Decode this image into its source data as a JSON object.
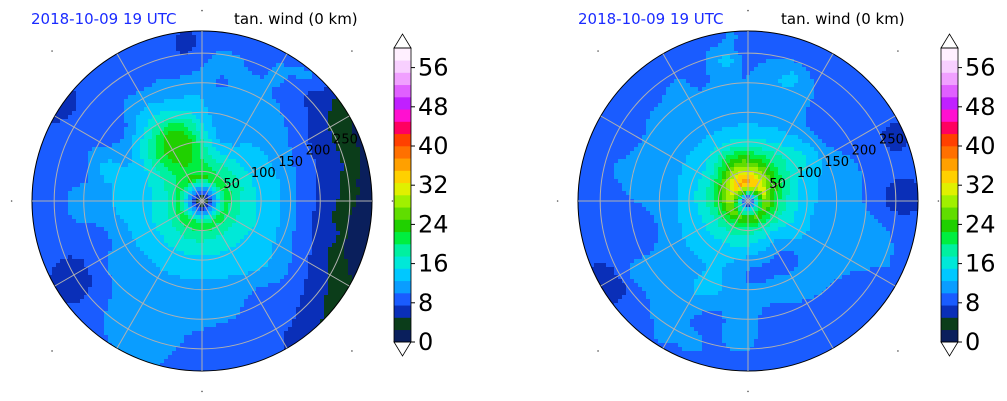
{
  "chart_data": [
    {
      "type": "heatmap",
      "date_label": "2018-10-09 19 UTC",
      "field_label": "tan. wind (0 km)",
      "radius_labels": [
        "50",
        "100",
        "150",
        "200",
        "250"
      ],
      "radius_ticks": [
        50,
        100,
        150,
        200,
        250
      ],
      "spokes_deg": [
        0,
        30,
        60,
        90,
        120,
        150,
        180,
        210,
        240,
        270,
        300,
        330
      ],
      "colorbar": {
        "ticks": [
          "0",
          "8",
          "16",
          "24",
          "32",
          "40",
          "48",
          "56"
        ],
        "tick_values": [
          0,
          8,
          16,
          24,
          32,
          40,
          48,
          56
        ],
        "range": [
          0,
          60
        ],
        "extend": "both"
      },
      "max_wind_approx": 33,
      "rmw_approx": 40
    },
    {
      "type": "heatmap",
      "date_label": "2018-10-09 19 UTC",
      "field_label": "tan. wind (0 km)",
      "radius_labels": [
        "50",
        "100",
        "150",
        "200",
        "250"
      ],
      "radius_ticks": [
        50,
        100,
        150,
        200,
        250
      ],
      "spokes_deg": [
        0,
        30,
        60,
        90,
        120,
        150,
        180,
        210,
        240,
        270,
        300,
        330
      ],
      "colorbar": {
        "ticks": [
          "0",
          "8",
          "16",
          "24",
          "32",
          "40",
          "48",
          "56"
        ],
        "tick_values": [
          0,
          8,
          16,
          24,
          32,
          40,
          48,
          56
        ],
        "range": [
          0,
          60
        ],
        "extend": "both"
      },
      "max_wind_approx": 36,
      "rmw_approx": 30
    }
  ],
  "colors": {
    "levels": [
      "#0a1f5c",
      "#0b3d1a",
      "#0a2fb8",
      "#1a5cff",
      "#0a9dff",
      "#00c8ff",
      "#00e8d8",
      "#00f0a0",
      "#00ee40",
      "#20d000",
      "#60dd00",
      "#a0f000",
      "#e0f000",
      "#ffd000",
      "#ffa000",
      "#ff7000",
      "#ff4000",
      "#ff0060",
      "#ff10d0",
      "#c020ff",
      "#e060ff",
      "#f0a0ff",
      "#f8d0ff",
      "#fff0ff"
    ],
    "grid": "#b0b0b0"
  }
}
